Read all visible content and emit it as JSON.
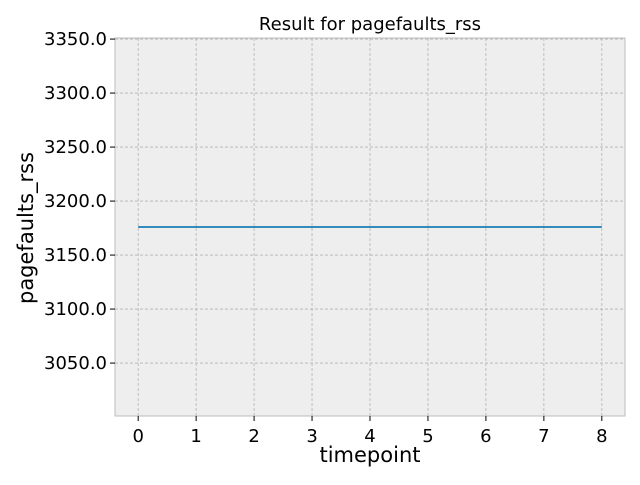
{
  "chart_data": {
    "type": "line",
    "title": "Result for pagefaults_rss",
    "xlabel": "timepoint",
    "ylabel": "pagefaults_rss",
    "x": [
      0,
      1,
      2,
      3,
      4,
      5,
      6,
      7,
      8
    ],
    "series": [
      {
        "values": [
          3176,
          3176,
          3176,
          3176,
          3176,
          3176,
          3176,
          3176,
          3176
        ],
        "color": "#348abd"
      }
    ],
    "xlim": [
      -0.4,
      8.4
    ],
    "ylim": [
      3001,
      3351
    ],
    "x_ticks": [
      0,
      1,
      2,
      3,
      4,
      5,
      6,
      7,
      8
    ],
    "x_tick_labels": [
      "0",
      "1",
      "2",
      "3",
      "4",
      "5",
      "6",
      "7",
      "8"
    ],
    "y_ticks": [
      3050,
      3100,
      3150,
      3200,
      3250,
      3300,
      3350
    ],
    "y_tick_labels": [
      "3050.0",
      "3100.0",
      "3150.0",
      "3200.0",
      "3250.0",
      "3300.0",
      "3350.0"
    ],
    "grid": true,
    "style": {
      "background": "#eeeeee",
      "grid_color": "#b3b3b3",
      "frame_color": "#bcbcbc"
    }
  }
}
